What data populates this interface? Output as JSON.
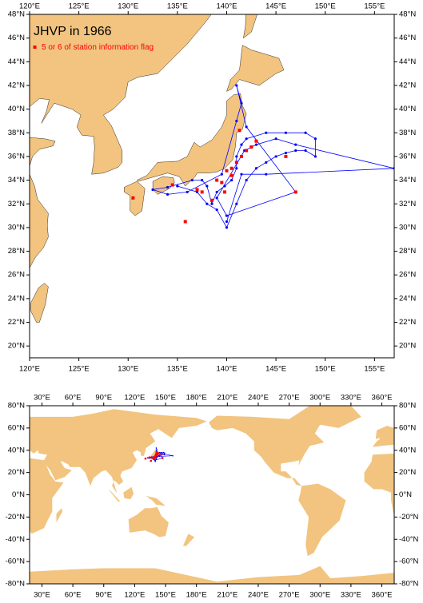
{
  "title": "JHVP in 1966",
  "legend": "5 or 6 of station information flag",
  "maps": [
    {
      "xlim": [
        120,
        157
      ],
      "ylim": [
        19,
        48
      ],
      "xticks": [
        {
          "value": 120,
          "label": "120°E"
        },
        {
          "value": 125,
          "label": "125°E"
        },
        {
          "value": 130,
          "label": "130°E"
        },
        {
          "value": 135,
          "label": "135°E"
        },
        {
          "value": 140,
          "label": "140°E"
        },
        {
          "value": 145,
          "label": "145°E"
        },
        {
          "value": 150,
          "label": "150°E"
        },
        {
          "value": 155,
          "label": "155°E"
        }
      ],
      "yticks": [
        {
          "value": 20,
          "label": "20°N"
        },
        {
          "value": 22,
          "label": "22°N"
        },
        {
          "value": 24,
          "label": "24°N"
        },
        {
          "value": 26,
          "label": "26°N"
        },
        {
          "value": 28,
          "label": "28°N"
        },
        {
          "value": 30,
          "label": "30°N"
        },
        {
          "value": 32,
          "label": "32°N"
        },
        {
          "value": 34,
          "label": "34°N"
        },
        {
          "value": 36,
          "label": "36°N"
        },
        {
          "value": 38,
          "label": "38°N"
        },
        {
          "value": 40,
          "label": "40°N"
        },
        {
          "value": 42,
          "label": "42°N"
        },
        {
          "value": 44,
          "label": "44°N"
        },
        {
          "value": 46,
          "label": "46°N"
        },
        {
          "value": 48,
          "label": "48°N"
        }
      ]
    },
    {
      "xlim": [
        18,
        372
      ],
      "ylim": [
        -80,
        80
      ],
      "xticks": [
        {
          "value": 30,
          "label": "30°E"
        },
        {
          "value": 60,
          "label": "60°E"
        },
        {
          "value": 90,
          "label": "90°E"
        },
        {
          "value": 120,
          "label": "120°E"
        },
        {
          "value": 150,
          "label": "150°E"
        },
        {
          "value": 180,
          "label": "180°E"
        },
        {
          "value": 210,
          "label": "210°E"
        },
        {
          "value": 240,
          "label": "240°E"
        },
        {
          "value": 270,
          "label": "270°E"
        },
        {
          "value": 300,
          "label": "300°E"
        },
        {
          "value": 330,
          "label": "330°E"
        },
        {
          "value": 360,
          "label": "360°E"
        }
      ],
      "yticks": [
        {
          "value": -80,
          "label": "-80°N"
        },
        {
          "value": -60,
          "label": "-60°N"
        },
        {
          "value": -40,
          "label": "-40°N"
        },
        {
          "value": -20,
          "label": "-20°N"
        },
        {
          "value": 0,
          "label": "0°N"
        },
        {
          "value": 20,
          "label": "20°N"
        },
        {
          "value": 40,
          "label": "40°N"
        },
        {
          "value": 60,
          "label": "60°N"
        },
        {
          "value": 80,
          "label": "80°N"
        }
      ]
    }
  ],
  "stations": {
    "lon": [
      135,
      137,
      138,
      139,
      140,
      141,
      142,
      143,
      144,
      145,
      146,
      147,
      148,
      149,
      149,
      148,
      146,
      144,
      142,
      141.5,
      141,
      141,
      140.5,
      139.8,
      139,
      138.5,
      138,
      137.5,
      136.5,
      134,
      132.5,
      134,
      136,
      139.5,
      141,
      141.5,
      141,
      142,
      147,
      140,
      139,
      141.8,
      143,
      145,
      147,
      157,
      144,
      141.5,
      140
    ],
    "lat": [
      33.5,
      33,
      32,
      31.5,
      30,
      32,
      34,
      35,
      35.5,
      36,
      36.3,
      36.5,
      36.5,
      36,
      37.5,
      38,
      38,
      38,
      37.5,
      37,
      36,
      35,
      34,
      33.5,
      33,
      32,
      33.5,
      34,
      34,
      33.4,
      33.2,
      32.8,
      33,
      34.5,
      39,
      40.5,
      42,
      38.5,
      33,
      31,
      32.5,
      36.5,
      37,
      37.5,
      37,
      35,
      34.5,
      34.5,
      30.5
    ]
  },
  "flagged": {
    "lon": [
      135.8,
      137,
      138.5,
      139,
      139.5,
      140,
      140.5,
      141,
      141.5,
      142,
      142.5,
      143,
      141.3,
      139.8,
      137.5,
      146,
      147,
      140.5,
      134.5,
      130.5
    ],
    "lat": [
      30.5,
      33.2,
      32.3,
      34,
      33.8,
      34.8,
      35,
      35.5,
      36,
      36.5,
      36.8,
      37.3,
      38.2,
      33,
      33,
      36,
      33,
      34.4,
      33.6,
      32.5
    ]
  }
}
